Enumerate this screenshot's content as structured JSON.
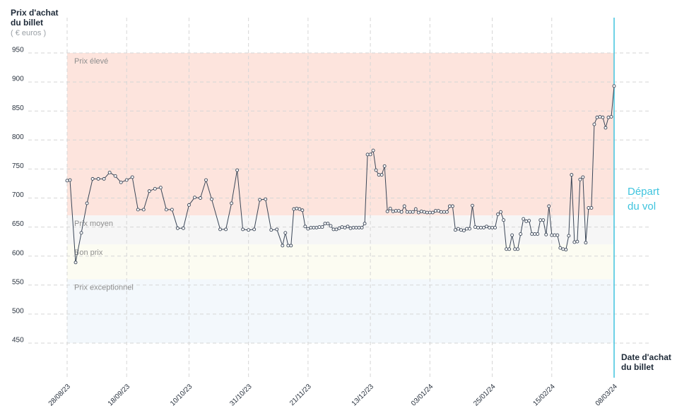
{
  "chart_data": {
    "type": "line",
    "y_axis_label": "Prix d'achat du billet",
    "y_axis_unit": "( € euros )",
    "x_axis_label": "Date d'achat du billet",
    "annotation": {
      "text": "Départ du vol",
      "x": "08/03/24",
      "color": "#3fc4de"
    },
    "bands": [
      {
        "label": "Prix élevé",
        "from": 670,
        "to": 950,
        "color": "#fde4dd"
      },
      {
        "label": "Prix moyen",
        "from": 620,
        "to": 670,
        "color": "#f6f6f6"
      },
      {
        "label": "Bon prix",
        "from": 560,
        "to": 620,
        "color": "#fcfcf2"
      },
      {
        "label": "Prix exceptionnel",
        "from": 450,
        "to": 560,
        "color": "#f3f8fc"
      }
    ],
    "color": "#3a4657",
    "ylim": [
      450,
      950
    ],
    "yticks": [
      450,
      500,
      550,
      600,
      650,
      700,
      750,
      800,
      850,
      900,
      950
    ],
    "xlim": [
      "28/08/23",
      "08/03/24"
    ],
    "xticks": [
      "28/08/23",
      "18/09/23",
      "10/10/23",
      "31/10/23",
      "21/11/23",
      "13/12/23",
      "03/01/24",
      "25/01/24",
      "15/02/24",
      "08/03/24"
    ],
    "grid": true,
    "x": [
      "28/08/23",
      "29/08/23",
      "31/08/23",
      "02/09/23",
      "04/09/23",
      "06/09/23",
      "08/09/23",
      "10/09/23",
      "12/09/23",
      "14/09/23",
      "16/09/23",
      "18/09/23",
      "20/09/23",
      "22/09/23",
      "24/09/23",
      "26/09/23",
      "28/09/23",
      "30/09/23",
      "02/10/23",
      "04/10/23",
      "06/10/23",
      "08/10/23",
      "10/10/23",
      "12/10/23",
      "14/10/23",
      "16/10/23",
      "18/10/23",
      "21/10/23",
      "23/10/23",
      "25/10/23",
      "27/10/23",
      "29/10/23",
      "31/10/23",
      "02/11/23",
      "04/11/23",
      "06/11/23",
      "08/11/23",
      "10/11/23",
      "12/11/23",
      "13/11/23",
      "14/11/23",
      "15/11/23",
      "16/11/23",
      "17/11/23",
      "18/11/23",
      "19/11/23",
      "20/11/23",
      "21/11/23",
      "22/11/23",
      "23/11/23",
      "24/11/23",
      "25/11/23",
      "26/11/23",
      "27/11/23",
      "28/11/23",
      "29/11/23",
      "30/11/23",
      "01/12/23",
      "02/12/23",
      "03/12/23",
      "04/12/23",
      "05/12/23",
      "06/12/23",
      "07/12/23",
      "08/12/23",
      "09/12/23",
      "10/12/23",
      "11/12/23",
      "12/12/23",
      "13/12/23",
      "14/12/23",
      "15/12/23",
      "16/12/23",
      "17/12/23",
      "18/12/23",
      "19/12/23",
      "20/12/23",
      "21/12/23",
      "22/12/23",
      "23/12/23",
      "24/12/23",
      "25/12/23",
      "26/12/23",
      "27/12/23",
      "28/12/23",
      "29/12/23",
      "30/12/23",
      "31/12/23",
      "01/01/24",
      "02/01/24",
      "03/01/24",
      "04/01/24",
      "05/01/24",
      "06/01/24",
      "07/01/24",
      "08/01/24",
      "09/01/24",
      "10/01/24",
      "11/01/24",
      "12/01/24",
      "13/01/24",
      "14/01/24",
      "15/01/24",
      "16/01/24",
      "17/01/24",
      "18/01/24",
      "19/01/24",
      "20/01/24",
      "21/01/24",
      "22/01/24",
      "23/01/24",
      "24/01/24",
      "25/01/24",
      "26/01/24",
      "27/01/24",
      "28/01/24",
      "29/01/24",
      "30/01/24",
      "31/01/24",
      "01/02/24",
      "02/02/24",
      "03/02/24",
      "04/02/24",
      "05/02/24",
      "06/02/24",
      "07/02/24",
      "08/02/24",
      "09/02/24",
      "10/02/24",
      "11/02/24",
      "12/02/24",
      "13/02/24",
      "14/02/24",
      "15/02/24",
      "16/02/24",
      "17/02/24",
      "18/02/24",
      "19/02/24",
      "20/02/24",
      "21/02/24",
      "22/02/24",
      "23/02/24",
      "24/02/24",
      "25/02/24",
      "26/02/24",
      "27/02/24",
      "28/02/24",
      "29/02/24",
      "01/03/24",
      "02/03/24",
      "03/03/24",
      "04/03/24",
      "05/03/24",
      "06/03/24",
      "07/03/24",
      "08/03/24"
    ],
    "values": [
      730,
      731,
      589,
      640,
      691,
      733,
      733,
      733,
      744,
      738,
      727,
      731,
      736,
      680,
      680,
      712,
      716,
      718,
      680,
      680,
      648,
      648,
      688,
      701,
      700,
      731,
      698,
      646,
      646,
      691,
      748,
      646,
      645,
      646,
      697,
      698,
      645,
      646,
      618,
      640,
      618,
      618,
      681,
      682,
      681,
      679,
      651,
      647,
      649,
      649,
      649,
      650,
      650,
      656,
      656,
      652,
      646,
      646,
      648,
      650,
      649,
      651,
      648,
      649,
      649,
      649,
      649,
      656,
      775,
      775,
      782,
      748,
      740,
      740,
      755,
      677,
      682,
      677,
      678,
      678,
      676,
      686,
      676,
      676,
      676,
      681,
      675,
      677,
      676,
      675,
      675,
      675,
      678,
      678,
      676,
      676,
      676,
      686,
      686,
      645,
      647,
      645,
      644,
      647,
      647,
      687,
      650,
      649,
      649,
      649,
      651,
      649,
      649,
      649,
      672,
      676,
      662,
      612,
      612,
      636,
      612,
      612,
      638,
      664,
      660,
      661,
      638,
      638,
      638,
      662,
      662,
      637,
      686,
      636,
      636,
      636,
      614,
      612,
      611,
      635,
      740,
      624,
      625,
      732,
      736,
      623,
      683,
      683,
      827,
      839,
      840,
      839,
      821,
      839,
      840,
      893
    ]
  }
}
